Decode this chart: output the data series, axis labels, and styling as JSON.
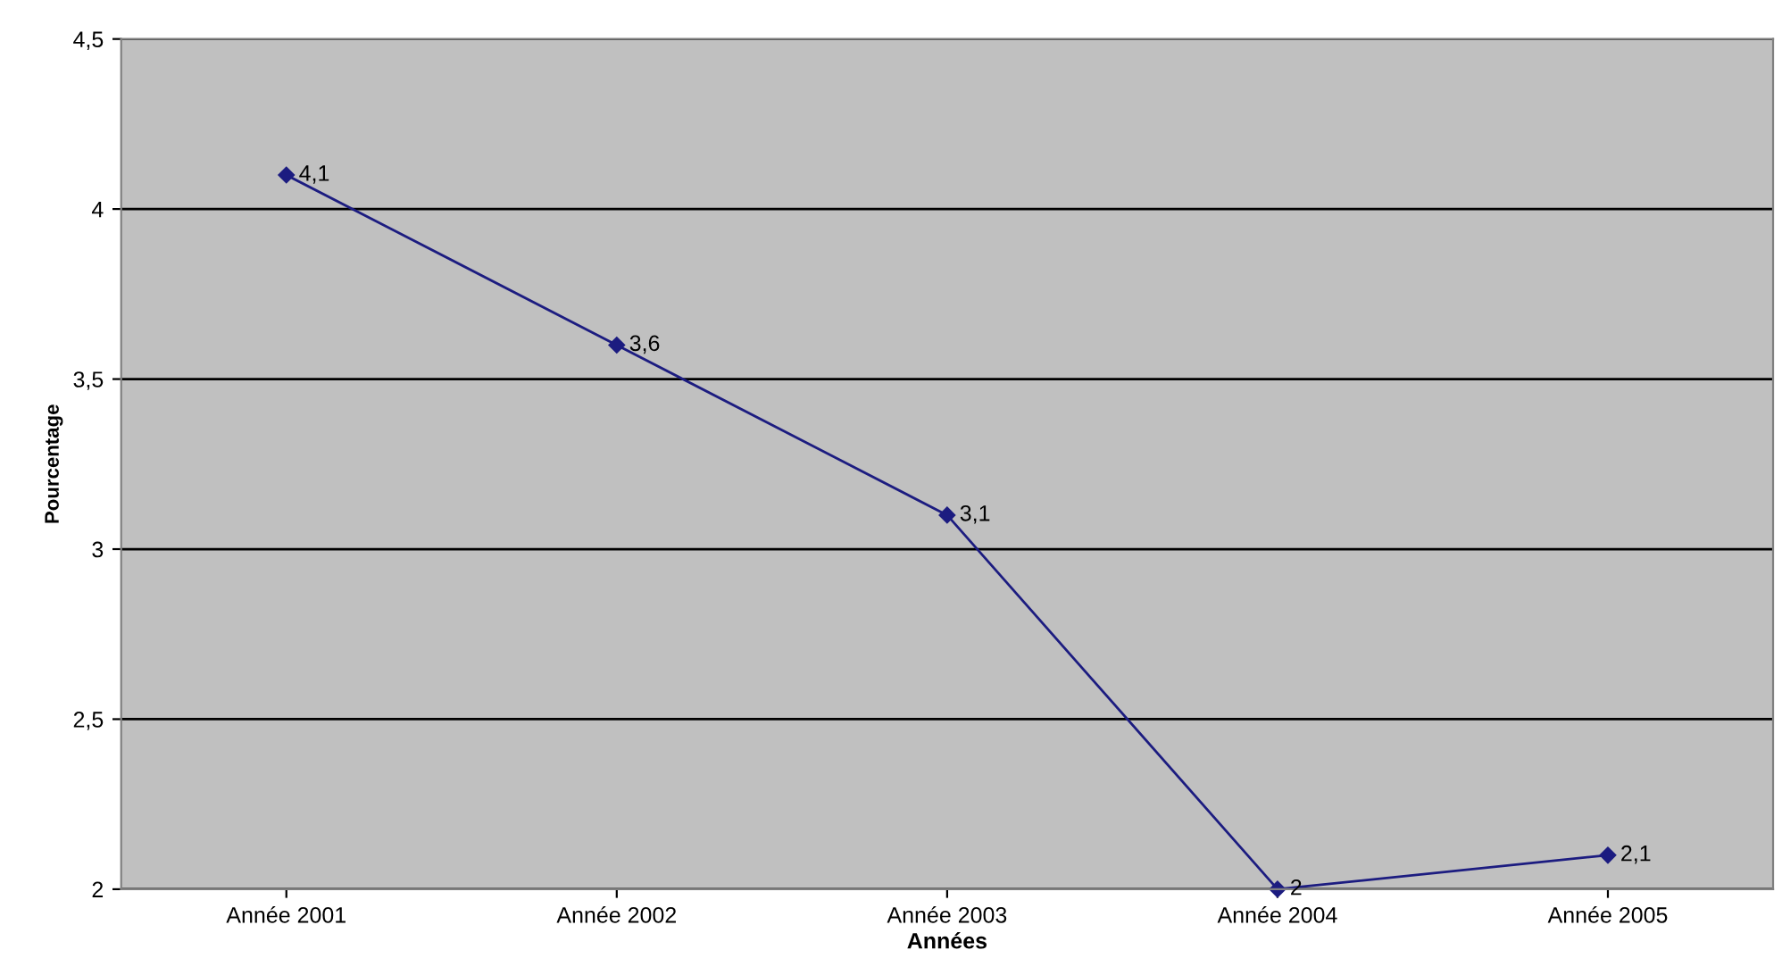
{
  "chart_data": {
    "type": "line",
    "xlabel": "Années",
    "ylabel": "Pourcentage",
    "categories": [
      "Année 2001",
      "Année 2002",
      "Année 2003",
      "Année 2004",
      "Année 2005"
    ],
    "series": [
      {
        "color": "#1c1c80",
        "values": [
          4.1,
          3.6,
          3.1,
          2,
          2.1
        ],
        "value_labels": [
          "4,1",
          "3,6",
          "3,1",
          "2",
          "2,1"
        ]
      }
    ],
    "ylim": [
      2,
      4.5
    ],
    "yticks": [
      2,
      {
        "value": 2.5,
        "label": "2,5"
      },
      3,
      {
        "value": 3.5,
        "label": "3,5"
      },
      4,
      {
        "value": 4.5,
        "label": "4,5"
      }
    ],
    "grid": "y",
    "marker": "diamond",
    "line_style": "solid",
    "legend": false
  }
}
